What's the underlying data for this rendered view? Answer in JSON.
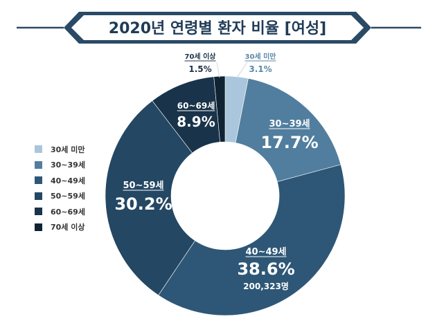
{
  "chart_data": {
    "type": "pie",
    "donut": true,
    "title": "2020년 연령별 환자 비율 [여성]",
    "legend_position": "left",
    "slices": [
      {
        "label": "30세 미만",
        "percent": "3.1%",
        "value": 3.1,
        "color": "#a9c6dc"
      },
      {
        "label": "30~39세",
        "percent": "17.7%",
        "value": 17.7,
        "color": "#517e9e"
      },
      {
        "label": "40~49세",
        "percent": "38.6%",
        "value": 38.6,
        "color": "#2e5777",
        "extra": "200,323명"
      },
      {
        "label": "50~59세",
        "percent": "30.2%",
        "value": 30.2,
        "color": "#244763"
      },
      {
        "label": "60~69세",
        "percent": "8.9%",
        "value": 8.9,
        "color": "#19334a"
      },
      {
        "label": "70세 이상",
        "percent": "1.5%",
        "value": 1.5,
        "color": "#0f2333"
      }
    ]
  },
  "colors": {
    "title_text": "#1f3b57",
    "ribbon": "#2a4a66",
    "banner_fill": "#ffffff"
  }
}
